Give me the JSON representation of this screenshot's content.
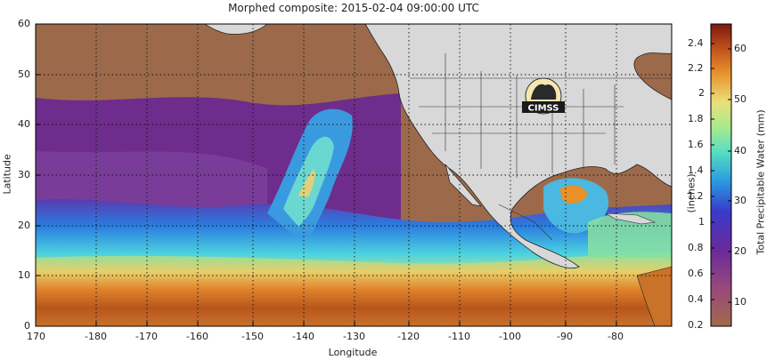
{
  "title": "Morphed composite: 2015-02-04 09:00:00 UTC",
  "axes": {
    "xlabel": "Longitude",
    "ylabel": "Latitude",
    "x_ticks": [
      "170",
      "-180",
      "-170",
      "-160",
      "-150",
      "-140",
      "-130",
      "-120",
      "-110",
      "-100",
      "-90",
      "-80"
    ],
    "y_ticks": [
      "60",
      "50",
      "40",
      "30",
      "20",
      "10",
      "0"
    ]
  },
  "colorbar": {
    "mm_title": "Total Precipitable Water (mm)",
    "inch_title": "(inches)",
    "inch_ticks": [
      "2.4",
      "2.2",
      "2",
      "1.8",
      "1.6",
      "1.4",
      "1.2",
      "1",
      "0.8",
      "0.6",
      "0.4",
      "0.2"
    ],
    "mm_ticks": [
      "60",
      "50",
      "40",
      "30",
      "20",
      "10"
    ]
  },
  "logo": {
    "text": "CIMSS"
  },
  "colors": {
    "dry": "#9a6a46",
    "purple": "#6b2a8a",
    "blue": "#3a8ee0",
    "cyan": "#6fe0d8",
    "green": "#9ee6a0",
    "orange": "#e08a2a",
    "deep_orange": "#b0521a",
    "land": "#d8d8d8"
  }
}
